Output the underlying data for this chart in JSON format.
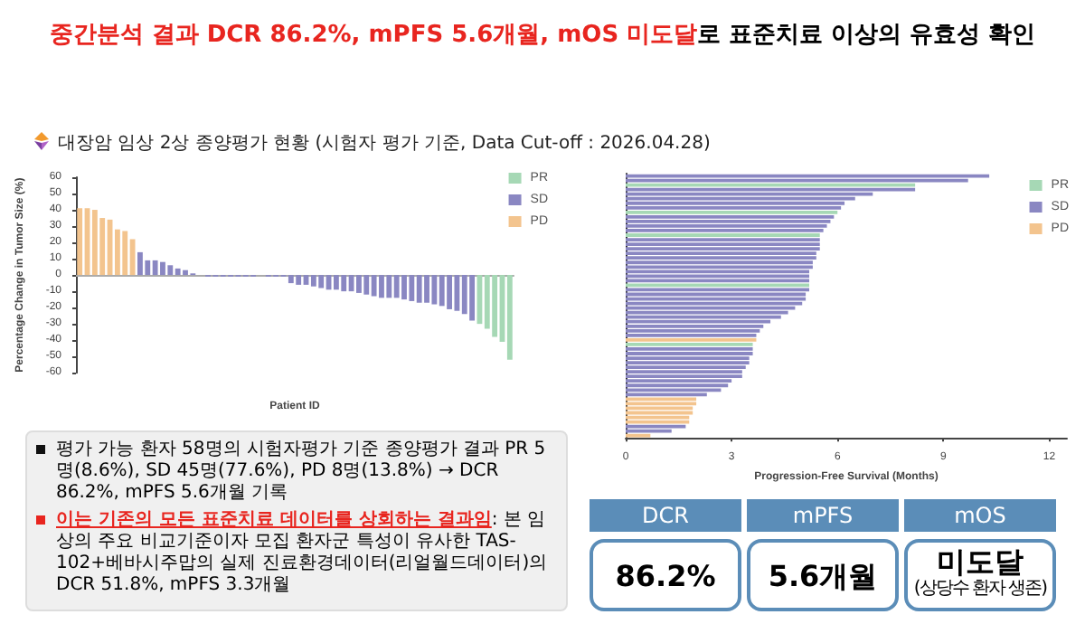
{
  "chart_data": [
    {
      "type": "bar",
      "title": "대장암 임상 2상 종양평가 현황 (시험자 평가 기준, Data Cut-off : 2026.04.28)",
      "xlabel": "Patient ID",
      "ylabel": "Percentage Change in Tumor Size (%)",
      "categories": [
        null,
        null,
        null,
        null,
        null,
        null,
        null,
        null,
        null,
        null,
        null,
        null,
        null,
        null,
        null,
        null,
        null,
        null,
        null,
        null,
        null,
        null,
        null,
        null,
        null,
        null,
        null,
        null,
        null,
        null,
        null,
        null,
        null,
        null,
        null,
        null,
        null,
        null,
        null,
        null,
        null,
        null,
        null,
        null,
        null,
        null,
        null,
        null,
        null,
        null,
        null,
        null,
        null,
        null,
        null,
        null,
        null,
        null
      ],
      "stacked": true,
      "ylim": [
        -60,
        60
      ],
      "yticks": [
        -60,
        -50,
        -40,
        -30,
        -20,
        -10,
        0,
        10,
        20,
        30,
        40,
        50,
        60
      ],
      "legend": "top right",
      "series": [
        {
          "name": "PR",
          "color": "#a6d8b5",
          "values": [
            null,
            null,
            null,
            null,
            null,
            null,
            null,
            null,
            null,
            null,
            null,
            null,
            null,
            null,
            null,
            null,
            null,
            null,
            null,
            null,
            null,
            null,
            null,
            null,
            null,
            null,
            null,
            null,
            null,
            null,
            null,
            null,
            null,
            null,
            null,
            null,
            null,
            null,
            null,
            null,
            null,
            null,
            null,
            null,
            null,
            null,
            null,
            null,
            null,
            null,
            null,
            null,
            null,
            -30,
            -33,
            -38,
            -41,
            -52
          ]
        },
        {
          "name": "SD",
          "color": "#8a87c2",
          "values": [
            null,
            null,
            null,
            null,
            null,
            null,
            null,
            null,
            14,
            9,
            9,
            8,
            6,
            4,
            3,
            1,
            0,
            -1,
            -1,
            -1,
            -1,
            -1,
            -1,
            -1,
            0,
            -1,
            -1,
            -1,
            -5,
            -6,
            -6,
            -7,
            -8,
            -9,
            -9,
            -10,
            -10,
            -11,
            -12,
            -13,
            -14,
            -14,
            -14,
            -15,
            -16,
            -17,
            -17,
            -18,
            -19,
            -21,
            -22,
            -24,
            -28,
            null,
            null,
            null,
            null,
            null
          ]
        },
        {
          "name": "PD",
          "color": "#f3c48e",
          "values": [
            41,
            41,
            40,
            35,
            34,
            28,
            27,
            22,
            null,
            null,
            null,
            null,
            null,
            null,
            null,
            null,
            null,
            null,
            null,
            null,
            null,
            null,
            null,
            null,
            null,
            null,
            null,
            null,
            null,
            null,
            null,
            null,
            null,
            null,
            null,
            null,
            null,
            null,
            null,
            null,
            null,
            null,
            null,
            null,
            null,
            null,
            null,
            null,
            null,
            null,
            null,
            null,
            null,
            null,
            null,
            null,
            null,
            null
          ]
        }
      ]
    },
    {
      "type": "bar",
      "orientation": "horizontal",
      "xlabel": "Progression-Free Survival (Months)",
      "categories": [
        null,
        null,
        null,
        null,
        null,
        null,
        null,
        null,
        null,
        null,
        null,
        null,
        null,
        null,
        null,
        null,
        null,
        null,
        null,
        null,
        null,
        null,
        null,
        null,
        null,
        null,
        null,
        null,
        null,
        null,
        null,
        null,
        null,
        null,
        null,
        null,
        null,
        null,
        null,
        null,
        null,
        null,
        null,
        null,
        null,
        null,
        null,
        null,
        null,
        null,
        null,
        null,
        null,
        null,
        null,
        null,
        null,
        null
      ],
      "stacked": true,
      "xlim": [
        0,
        12.5
      ],
      "xticks": [
        0,
        3,
        6,
        9,
        12
      ],
      "legend": "top right",
      "series": [
        {
          "name": "PR",
          "color": "#a6d8b5",
          "values": [
            null,
            null,
            8.2,
            null,
            null,
            null,
            null,
            null,
            6.0,
            null,
            null,
            null,
            null,
            5.5,
            null,
            null,
            null,
            null,
            null,
            null,
            null,
            null,
            null,
            null,
            5.2,
            null,
            null,
            null,
            null,
            null,
            null,
            null,
            null,
            null,
            null,
            null,
            null,
            3.6,
            null,
            null,
            null,
            null,
            null,
            null,
            null,
            null,
            null,
            null,
            null,
            null,
            null,
            null,
            null,
            null,
            null,
            null,
            null,
            null
          ]
        },
        {
          "name": "SD",
          "color": "#8a87c2",
          "values": [
            10.3,
            9.7,
            null,
            8.2,
            7.0,
            6.5,
            6.2,
            6.1,
            null,
            5.9,
            5.8,
            5.7,
            5.6,
            null,
            5.5,
            5.5,
            5.5,
            5.4,
            5.4,
            5.3,
            5.3,
            5.2,
            5.2,
            5.2,
            null,
            5.2,
            5.1,
            5.1,
            5.0,
            4.8,
            4.6,
            4.4,
            4.1,
            3.9,
            3.8,
            3.7,
            null,
            null,
            3.6,
            3.6,
            3.5,
            3.5,
            3.4,
            3.3,
            3.3,
            3.0,
            2.9,
            2.7,
            2.3,
            null,
            null,
            null,
            null,
            null,
            null,
            1.7,
            1.3,
            null
          ]
        },
        {
          "name": "PD",
          "color": "#f3c48e",
          "values": [
            null,
            null,
            null,
            null,
            null,
            null,
            null,
            null,
            null,
            null,
            null,
            null,
            null,
            null,
            null,
            null,
            null,
            null,
            null,
            null,
            null,
            null,
            null,
            null,
            null,
            null,
            null,
            null,
            null,
            null,
            null,
            null,
            null,
            null,
            null,
            null,
            3.7,
            null,
            null,
            null,
            null,
            null,
            null,
            null,
            null,
            null,
            null,
            null,
            null,
            2.0,
            2.0,
            1.9,
            1.9,
            1.8,
            1.8,
            null,
            null,
            0.7
          ]
        }
      ]
    },
    {
      "type": "other",
      "annotations": [
        "중간분석 결과 DCR 86.2%, mPFS 5.6개월, mOS 미도달",
        "로 표준치료 이상의 유효성 확인",
        "평가 가능 환자 58명의 시험자평가 기준 종양평가 결과 PR 5명(8.6%), SD 45명(77.6%), PD 8명(13.8%) → DCR 86.2%, mPFS 5.6개월 기록",
        "이는 기존의 모든 표준치료 데이터를 상회하는 결과임",
        ": 본 임상의 주요 비교기준이자 모집 환자군 특성이 유사한 TAS-102+베바시주맙의 실제 진료환경데이터(리얼월드데이터)의 DCR 51.8%, mPFS 3.3개월",
        "DCR",
        "86.2%",
        "mPFS",
        "5.6개월",
        "mOS",
        "미도달",
        "(상당수 환자 생존)"
      ]
    }
  ]
}
